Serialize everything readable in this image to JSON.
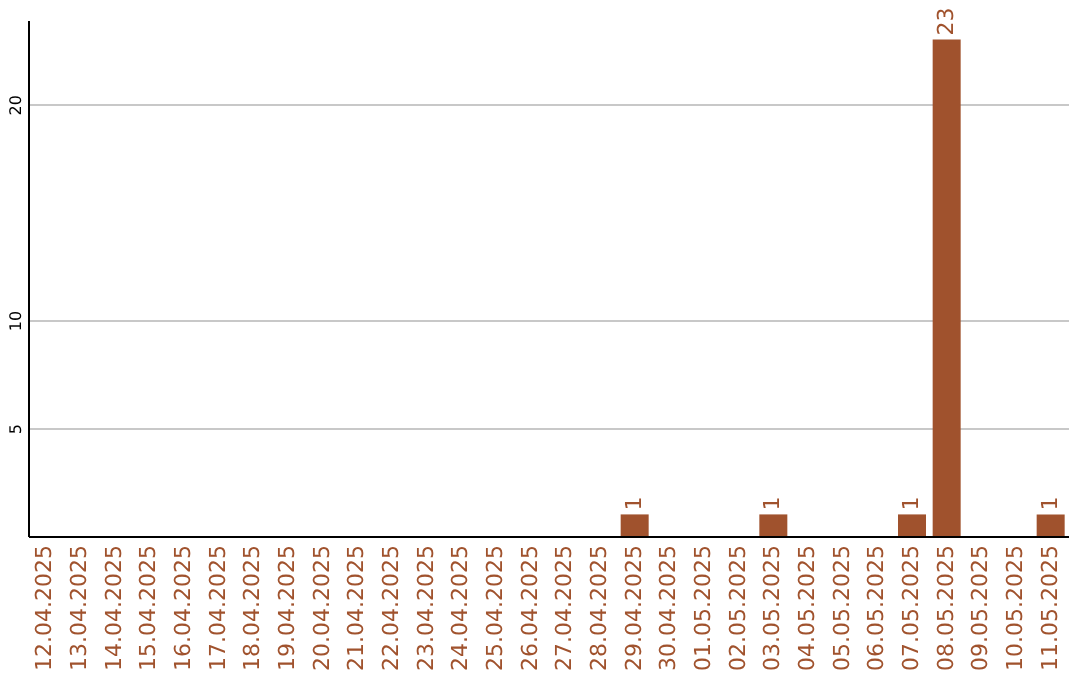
{
  "chart_data": {
    "type": "bar",
    "categories": [
      "12.04.2025",
      "13.04.2025",
      "14.04.2025",
      "15.04.2025",
      "16.04.2025",
      "17.04.2025",
      "18.04.2025",
      "19.04.2025",
      "20.04.2025",
      "21.04.2025",
      "22.04.2025",
      "23.04.2025",
      "24.04.2025",
      "25.04.2025",
      "26.04.2025",
      "27.04.2025",
      "28.04.2025",
      "29.04.2025",
      "30.04.2025",
      "01.05.2025",
      "02.05.2025",
      "03.05.2025",
      "04.05.2025",
      "05.05.2025",
      "06.05.2025",
      "07.05.2025",
      "08.05.2025",
      "09.05.2025",
      "10.05.2025",
      "11.05.2025"
    ],
    "values": [
      0,
      0,
      0,
      0,
      0,
      0,
      0,
      0,
      0,
      0,
      0,
      0,
      0,
      0,
      0,
      0,
      0,
      1,
      0,
      0,
      0,
      1,
      0,
      0,
      0,
      1,
      23,
      0,
      0,
      1
    ],
    "value_labels": [
      null,
      null,
      null,
      null,
      null,
      null,
      null,
      null,
      null,
      null,
      null,
      null,
      null,
      null,
      null,
      null,
      null,
      "1",
      null,
      null,
      null,
      "1",
      null,
      null,
      null,
      "1",
      "23",
      null,
      null,
      "1"
    ],
    "color": "#a0522d",
    "ylim": [
      0,
      23.9
    ],
    "yticks": [
      5,
      10,
      20
    ],
    "grid": "y"
  }
}
